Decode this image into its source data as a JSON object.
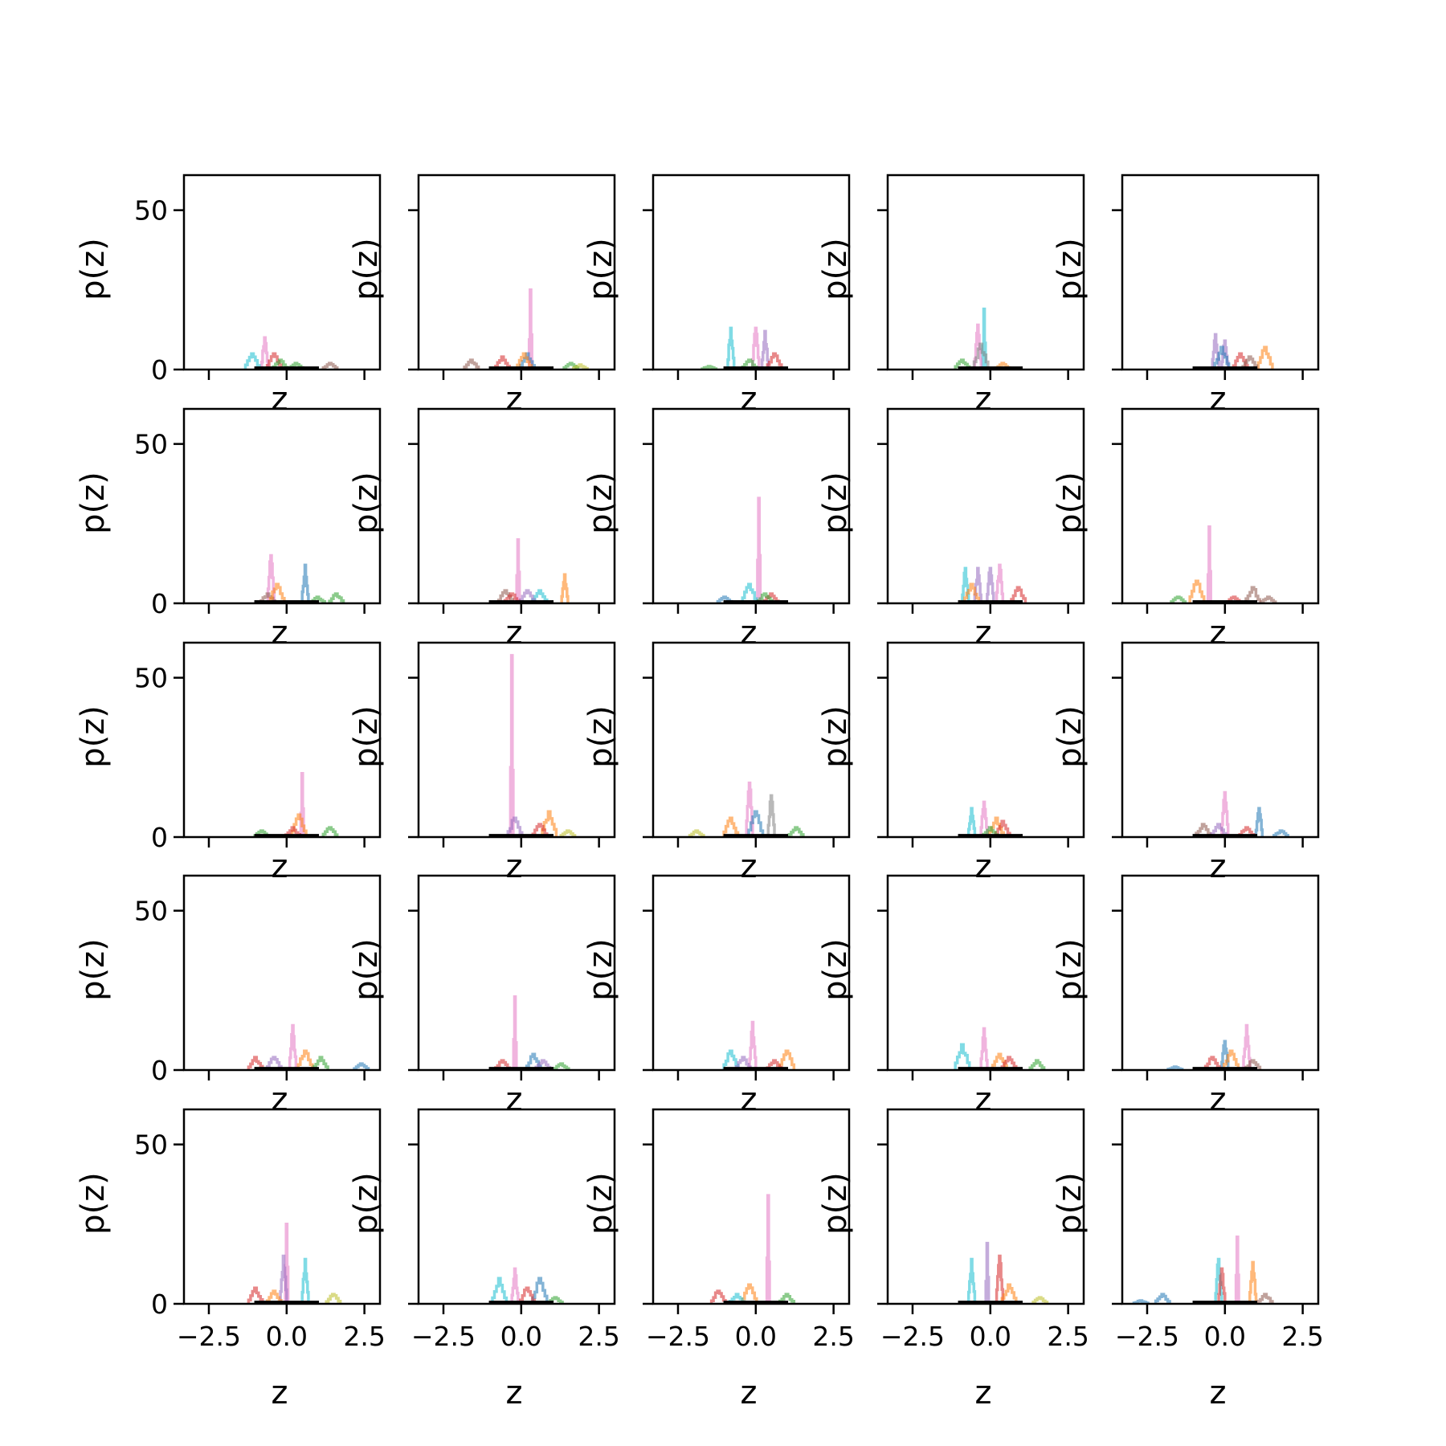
{
  "figure": {
    "rows": 5,
    "cols": 5,
    "xlabel": "z",
    "ylabel": "p(z)",
    "xlim": [
      -3.3,
      3.0
    ],
    "ylim": [
      0,
      61
    ],
    "xticks": [
      -2.5,
      0.0,
      2.5
    ],
    "xtick_labels": [
      "−2.5",
      "0.0",
      "2.5"
    ],
    "yticks": [
      0,
      50
    ],
    "ytick_labels": [
      "0",
      "50"
    ],
    "colors": [
      "#1f77b4",
      "#ff7f0e",
      "#2ca02c",
      "#d62728",
      "#9467bd",
      "#8c564b",
      "#e377c2",
      "#7f7f7f",
      "#bcbd22",
      "#17becf"
    ],
    "stack_color": "#000000"
  },
  "chart_data": {
    "type": "histogram-grid",
    "description": "",
    "panels": [
      {
        "row": 0,
        "col": 0,
        "peaks": [
          [
            -0.7,
            10,
            6
          ],
          [
            -1.1,
            5,
            9
          ],
          [
            -0.4,
            5,
            3
          ],
          [
            1.4,
            2,
            5
          ],
          [
            -0.2,
            3,
            2
          ],
          [
            0.3,
            2,
            2
          ]
        ]
      },
      {
        "row": 0,
        "col": 1,
        "peaks": [
          [
            0.3,
            25,
            6
          ],
          [
            0.2,
            5,
            0
          ],
          [
            0.1,
            5,
            1
          ],
          [
            -1.6,
            3,
            5
          ],
          [
            1.6,
            2,
            2
          ],
          [
            -0.6,
            4,
            3
          ],
          [
            1.9,
            1.5,
            8
          ]
        ]
      },
      {
        "row": 0,
        "col": 2,
        "peaks": [
          [
            -0.8,
            13,
            9
          ],
          [
            0.0,
            13,
            6
          ],
          [
            0.3,
            12,
            4
          ],
          [
            -0.2,
            3,
            2
          ],
          [
            0.6,
            5,
            3
          ],
          [
            -1.5,
            1,
            2
          ]
        ]
      },
      {
        "row": 0,
        "col": 3,
        "peaks": [
          [
            -0.2,
            19,
            9
          ],
          [
            -0.4,
            14,
            6
          ],
          [
            -0.3,
            8,
            7
          ],
          [
            -0.9,
            3,
            2
          ],
          [
            0.4,
            2,
            1
          ]
        ]
      },
      {
        "row": 0,
        "col": 4,
        "peaks": [
          [
            -0.3,
            11,
            4
          ],
          [
            1.3,
            7,
            1
          ],
          [
            0.0,
            9,
            4
          ],
          [
            0.5,
            5,
            3
          ],
          [
            -0.1,
            7,
            0
          ],
          [
            0.8,
            4,
            5
          ]
        ]
      },
      {
        "row": 1,
        "col": 0,
        "peaks": [
          [
            -0.5,
            15,
            6
          ],
          [
            0.6,
            12,
            0
          ],
          [
            -0.6,
            3,
            5
          ],
          [
            -0.3,
            6,
            1
          ],
          [
            1.6,
            3,
            2
          ],
          [
            1.0,
            2,
            2
          ]
        ]
      },
      {
        "row": 1,
        "col": 1,
        "peaks": [
          [
            -0.1,
            20,
            6
          ],
          [
            1.4,
            9,
            1
          ],
          [
            -0.5,
            4,
            5
          ],
          [
            0.6,
            4,
            9
          ],
          [
            0.2,
            4,
            4
          ],
          [
            -0.3,
            3,
            3
          ]
        ]
      },
      {
        "row": 1,
        "col": 2,
        "peaks": [
          [
            0.1,
            33,
            6
          ],
          [
            -0.2,
            6,
            9
          ],
          [
            -1.0,
            2,
            0
          ],
          [
            0.5,
            3,
            3
          ],
          [
            0.3,
            3,
            2
          ]
        ]
      },
      {
        "row": 1,
        "col": 3,
        "peaks": [
          [
            -0.8,
            11,
            9
          ],
          [
            0.3,
            12,
            6
          ],
          [
            -0.4,
            11,
            4
          ],
          [
            0.0,
            11,
            4
          ],
          [
            -0.6,
            6,
            1
          ],
          [
            0.9,
            5,
            3
          ]
        ]
      },
      {
        "row": 1,
        "col": 4,
        "peaks": [
          [
            -0.5,
            24,
            6
          ],
          [
            -0.9,
            7,
            1
          ],
          [
            -1.5,
            2,
            2
          ],
          [
            0.9,
            5,
            5
          ],
          [
            0.3,
            2,
            3
          ],
          [
            1.4,
            2,
            5
          ]
        ]
      },
      {
        "row": 2,
        "col": 0,
        "peaks": [
          [
            0.5,
            20,
            6
          ],
          [
            0.4,
            7,
            1
          ],
          [
            1.4,
            3,
            2
          ],
          [
            -0.8,
            2,
            2
          ],
          [
            0.2,
            3,
            3
          ]
        ]
      },
      {
        "row": 2,
        "col": 1,
        "peaks": [
          [
            -0.3,
            57,
            6
          ],
          [
            0.9,
            8,
            1
          ],
          [
            -0.2,
            6,
            4
          ],
          [
            0.6,
            4,
            3
          ],
          [
            1.5,
            2,
            8
          ]
        ]
      },
      {
        "row": 2,
        "col": 2,
        "peaks": [
          [
            -0.2,
            17,
            6
          ],
          [
            0.5,
            13,
            7
          ],
          [
            -0.8,
            6,
            1
          ],
          [
            0.0,
            8,
            0
          ],
          [
            1.3,
            3,
            2
          ],
          [
            -1.9,
            2,
            8
          ]
        ]
      },
      {
        "row": 2,
        "col": 3,
        "peaks": [
          [
            -0.2,
            11,
            6
          ],
          [
            -0.6,
            9,
            9
          ],
          [
            0.2,
            6,
            1
          ],
          [
            0.4,
            5,
            3
          ],
          [
            0.0,
            3,
            2
          ]
        ]
      },
      {
        "row": 2,
        "col": 4,
        "peaks": [
          [
            0.0,
            14,
            6
          ],
          [
            1.1,
            9,
            0
          ],
          [
            -0.7,
            4,
            5
          ],
          [
            -0.2,
            4,
            4
          ],
          [
            0.7,
            3,
            3
          ],
          [
            1.8,
            2,
            0
          ]
        ]
      },
      {
        "row": 3,
        "col": 0,
        "peaks": [
          [
            0.2,
            14,
            6
          ],
          [
            0.6,
            6,
            1
          ],
          [
            -1.0,
            4,
            3
          ],
          [
            1.1,
            4,
            2
          ],
          [
            2.4,
            2,
            0
          ],
          [
            -0.4,
            4,
            4
          ]
        ]
      },
      {
        "row": 3,
        "col": 1,
        "peaks": [
          [
            -0.2,
            23,
            6
          ],
          [
            0.4,
            5,
            0
          ],
          [
            -0.6,
            3,
            3
          ],
          [
            1.3,
            2,
            2
          ],
          [
            0.7,
            3,
            4
          ]
        ]
      },
      {
        "row": 3,
        "col": 2,
        "peaks": [
          [
            -0.1,
            15,
            6
          ],
          [
            1.0,
            6,
            1
          ],
          [
            -0.8,
            6,
            9
          ],
          [
            -0.4,
            4,
            4
          ],
          [
            0.6,
            3,
            3
          ]
        ]
      },
      {
        "row": 3,
        "col": 3,
        "peaks": [
          [
            -0.2,
            13,
            6
          ],
          [
            -0.9,
            8,
            9
          ],
          [
            0.3,
            5,
            1
          ],
          [
            1.5,
            3,
            2
          ],
          [
            0.6,
            4,
            3
          ]
        ]
      },
      {
        "row": 3,
        "col": 4,
        "peaks": [
          [
            0.7,
            14,
            6
          ],
          [
            0.0,
            9,
            0
          ],
          [
            -0.4,
            4,
            3
          ],
          [
            0.2,
            6,
            1
          ],
          [
            -1.6,
            1,
            0
          ],
          [
            0.9,
            3,
            5
          ]
        ]
      },
      {
        "row": 4,
        "col": 0,
        "peaks": [
          [
            0.0,
            25,
            6
          ],
          [
            0.6,
            14,
            9
          ],
          [
            -0.1,
            15,
            4
          ],
          [
            -1.0,
            5,
            3
          ],
          [
            1.5,
            3,
            8
          ],
          [
            -0.4,
            4,
            1
          ]
        ]
      },
      {
        "row": 4,
        "col": 1,
        "peaks": [
          [
            -0.2,
            11,
            6
          ],
          [
            0.6,
            8,
            0
          ],
          [
            -0.7,
            8,
            9
          ],
          [
            0.2,
            5,
            3
          ],
          [
            1.1,
            2,
            2
          ]
        ]
      },
      {
        "row": 4,
        "col": 2,
        "peaks": [
          [
            0.4,
            34,
            6
          ],
          [
            -0.2,
            6,
            1
          ],
          [
            -1.2,
            4,
            3
          ],
          [
            1.0,
            3,
            2
          ],
          [
            -0.6,
            3,
            9
          ]
        ]
      },
      {
        "row": 4,
        "col": 3,
        "peaks": [
          [
            -0.1,
            19,
            4
          ],
          [
            0.3,
            15,
            3
          ],
          [
            -0.6,
            14,
            9
          ],
          [
            0.6,
            6,
            1
          ],
          [
            1.6,
            2,
            8
          ]
        ]
      },
      {
        "row": 4,
        "col": 4,
        "peaks": [
          [
            0.4,
            21,
            6
          ],
          [
            0.9,
            13,
            1
          ],
          [
            -0.2,
            14,
            9
          ],
          [
            -0.1,
            11,
            3
          ],
          [
            -2.0,
            3,
            0
          ],
          [
            1.3,
            3,
            5
          ],
          [
            -2.7,
            1,
            0
          ]
        ]
      }
    ]
  }
}
